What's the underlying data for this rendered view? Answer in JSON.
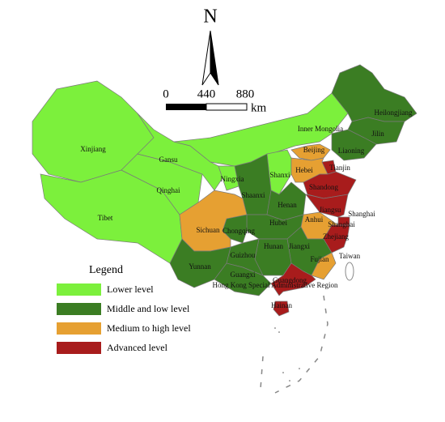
{
  "north": "N",
  "scale": {
    "ticks": [
      "0",
      "440",
      "880"
    ],
    "unit": "km"
  },
  "legend": {
    "title": "Legend",
    "items": [
      {
        "label": "Lower level",
        "color": "#7cf03c"
      },
      {
        "label": "Middle and low level",
        "color": "#3b7d23"
      },
      {
        "label": "Medium to high level",
        "color": "#e6a032"
      },
      {
        "label": "Advanced level",
        "color": "#a81c1c"
      }
    ]
  },
  "regions": [
    {
      "name": "Xinjiang",
      "level": "Lower level"
    },
    {
      "name": "Tibet",
      "level": "Lower level"
    },
    {
      "name": "Qinghai",
      "level": "Lower level"
    },
    {
      "name": "Gansu",
      "level": "Lower level"
    },
    {
      "name": "Inner Mongolia",
      "level": "Lower level"
    },
    {
      "name": "Ningxia",
      "level": "Lower level"
    },
    {
      "name": "Shanxi",
      "level": "Lower level"
    },
    {
      "name": "Heilongjiang",
      "level": "Middle and low level"
    },
    {
      "name": "Jilin",
      "level": "Middle and low level"
    },
    {
      "name": "Liaoning",
      "level": "Middle and low level"
    },
    {
      "name": "Beijing",
      "level": "Medium to high level"
    },
    {
      "name": "Hebei",
      "level": "Medium to high level"
    },
    {
      "name": "Tianjin",
      "level": "Advanced level"
    },
    {
      "name": "Shandong",
      "level": "Advanced level"
    },
    {
      "name": "Shaanxi",
      "level": "Middle and low level"
    },
    {
      "name": "Henan",
      "level": "Middle and low level"
    },
    {
      "name": "Jiangsu",
      "level": "Advanced level"
    },
    {
      "name": "Shanghai",
      "level": "Advanced level"
    },
    {
      "name": "Anhui",
      "level": "Medium to high level"
    },
    {
      "name": "Hubei",
      "level": "Middle and low level"
    },
    {
      "name": "Chongqing",
      "level": "Middle and low level"
    },
    {
      "name": "Sichuan",
      "level": "Medium to high level"
    },
    {
      "name": "Zhejiang",
      "level": "Advanced level"
    },
    {
      "name": "Jiangxi",
      "level": "Middle and low level"
    },
    {
      "name": "Hunan",
      "level": "Middle and low level"
    },
    {
      "name": "Guizhou",
      "level": "Middle and low level"
    },
    {
      "name": "Yunnan",
      "level": "Middle and low level"
    },
    {
      "name": "Fujian",
      "level": "Medium to high level"
    },
    {
      "name": "Guangxi",
      "level": "Middle and low level"
    },
    {
      "name": "Guangdong",
      "level": "Advanced level"
    },
    {
      "name": "Hainan",
      "level": "Advanced level"
    }
  ],
  "labels": [
    "Shanghai",
    "Taiwan",
    "Hong Kong Special Administrative Region"
  ]
}
